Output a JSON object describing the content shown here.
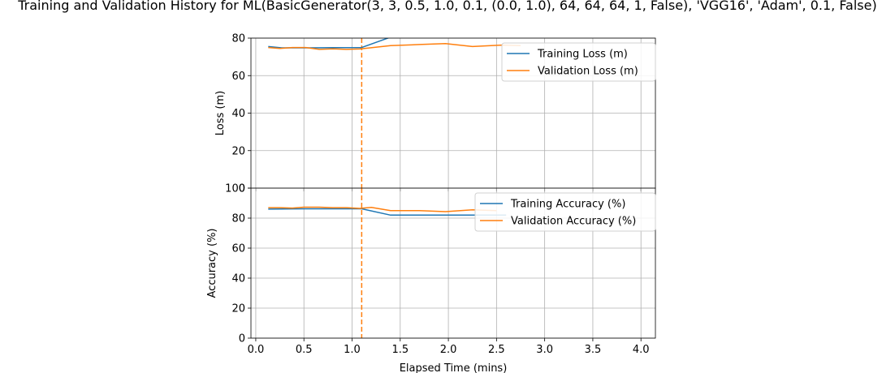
{
  "chart_data": {
    "type": "line",
    "title": "Training and Validation History for ML(BasicGenerator(3, 3, 0.5, 1.0, 0.1, (0.0, 1.0), 64, 64, 64, 1, False), 'VGG16', 'Adam', 0.1, False)",
    "xlabel": "Elapsed Time (mins)",
    "x_ticks": [
      "0.0",
      "0.5",
      "1.0",
      "1.5",
      "2.0",
      "2.5",
      "3.0",
      "3.5",
      "4.0"
    ],
    "xlim": [
      -0.05,
      4.15
    ],
    "grid": true,
    "best_epoch_marker": {
      "x": 1.1,
      "color": "#ff7f0e",
      "style": "dashed"
    },
    "panels": [
      {
        "id": "loss",
        "ylabel": "Loss (m)",
        "ylim": [
          0,
          80
        ],
        "y_ticks": [
          "0",
          "20",
          "40",
          "60",
          "80"
        ],
        "legend_position": "upper-right",
        "series": [
          {
            "name": "Training Loss (m)",
            "color": "#1f77b4",
            "points": [
              [
                0.13,
                75.5
              ],
              [
                0.27,
                74.8
              ],
              [
                0.5,
                74.8
              ],
              [
                0.8,
                74.9
              ],
              [
                1.1,
                75.0
              ],
              [
                1.4,
                80.5
              ],
              [
                2.0,
                80.5
              ],
              [
                2.6,
                80.5
              ],
              [
                3.2,
                80.5
              ],
              [
                3.9,
                80.5
              ]
            ]
          },
          {
            "name": "Validation Loss (m)",
            "color": "#ff7f0e",
            "points": [
              [
                0.13,
                75.0
              ],
              [
                0.25,
                74.5
              ],
              [
                0.38,
                75.0
              ],
              [
                0.52,
                75.0
              ],
              [
                0.66,
                74.0
              ],
              [
                0.8,
                74.3
              ],
              [
                0.94,
                74.0
              ],
              [
                1.08,
                74.2
              ],
              [
                1.4,
                76.0
              ],
              [
                1.7,
                76.6
              ],
              [
                1.97,
                77.1
              ],
              [
                2.25,
                75.5
              ],
              [
                2.55,
                76.3
              ],
              [
                2.75,
                76.0
              ]
            ]
          }
        ]
      },
      {
        "id": "accuracy",
        "ylabel": "Accuracy (%)",
        "ylim": [
          0,
          100
        ],
        "y_ticks": [
          "0",
          "20",
          "40",
          "60",
          "80",
          "100"
        ],
        "legend_position": "upper-right",
        "series": [
          {
            "name": "Training Accuracy (%)",
            "color": "#1f77b4",
            "points": [
              [
                0.13,
                86.0
              ],
              [
                0.5,
                86.2
              ],
              [
                0.8,
                86.2
              ],
              [
                1.1,
                86.2
              ],
              [
                1.4,
                82.0
              ],
              [
                1.8,
                82.0
              ],
              [
                2.3,
                82.0
              ],
              [
                2.6,
                82.0
              ]
            ]
          },
          {
            "name": "Validation Accuracy (%)",
            "color": "#ff7f0e",
            "points": [
              [
                0.13,
                87.0
              ],
              [
                0.25,
                87.0
              ],
              [
                0.38,
                86.7
              ],
              [
                0.5,
                87.3
              ],
              [
                0.66,
                87.3
              ],
              [
                0.8,
                87.0
              ],
              [
                0.94,
                87.0
              ],
              [
                1.08,
                86.5
              ],
              [
                1.2,
                87.2
              ],
              [
                1.4,
                85.0
              ],
              [
                1.7,
                85.0
              ],
              [
                1.97,
                84.3
              ],
              [
                2.25,
                85.5
              ],
              [
                2.5,
                85.0
              ]
            ]
          }
        ]
      }
    ]
  }
}
